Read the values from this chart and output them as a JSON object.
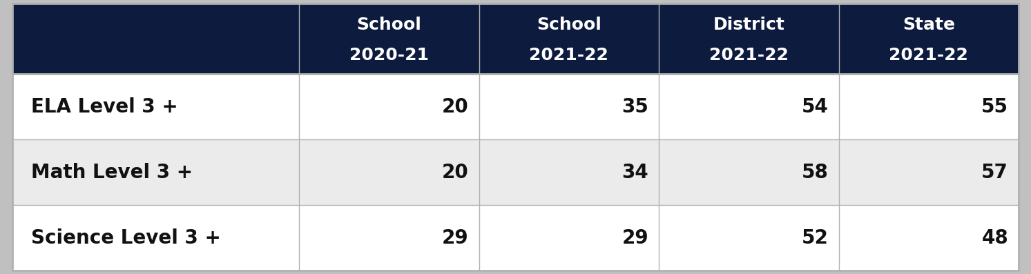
{
  "header_bg_color": "#0d1b3e",
  "header_text_color": "#ffffff",
  "row_labels": [
    "ELA Level 3 +",
    "Math Level 3 +",
    "Science Level 3 +"
  ],
  "col_headers_line1": [
    "School",
    "School",
    "District",
    "State"
  ],
  "col_headers_line2": [
    "2020-21",
    "2021-22",
    "2021-22",
    "2021-22"
  ],
  "values": [
    [
      20,
      35,
      54,
      55
    ],
    [
      20,
      34,
      58,
      57
    ],
    [
      29,
      29,
      52,
      48
    ]
  ],
  "row_bg_colors": [
    "#ffffff",
    "#ebebec",
    "#ffffff"
  ],
  "grid_color": "#b0b0b0",
  "header_fontsize": 18,
  "data_fontsize": 20,
  "label_fontsize": 20,
  "outer_border_color": "#b0b0b0",
  "fig_bg_color": "#c0c0c0",
  "table_bg_color": "#ffffff"
}
